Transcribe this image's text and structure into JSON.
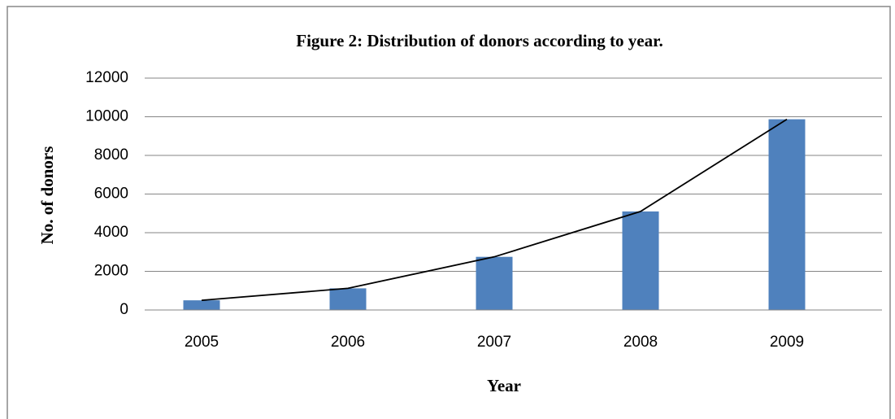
{
  "chart_data": {
    "type": "bar",
    "title": "Figure 2: Distribution of donors according to year.",
    "x_label": "Year",
    "y_label": "No. of donors",
    "categories": [
      "2005",
      "2006",
      "2007",
      "2008",
      "2009"
    ],
    "values": [
      500,
      1120,
      2750,
      5100,
      9870
    ],
    "color": "#4f81bd",
    "line_overlay": true,
    "line_color": "#000000",
    "ylim": [
      0,
      12000
    ],
    "yticks": [
      0,
      2000,
      4000,
      6000,
      8000,
      10000,
      12000
    ],
    "grid": true
  }
}
